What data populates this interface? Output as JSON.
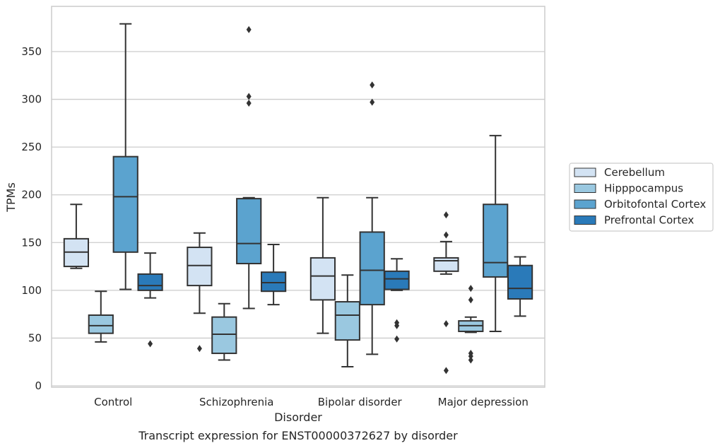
{
  "caption": "Transcript expression for ENST00000372627 by disorder",
  "chart_data": {
    "type": "box",
    "xlabel": "Disorder",
    "ylabel": "TPMs",
    "ylim": [
      0,
      395
    ],
    "yticks": [
      0,
      50,
      100,
      150,
      200,
      250,
      300,
      350
    ],
    "categories": [
      "Control",
      "Schizophrenia",
      "Bipolar disorder",
      "Major depression"
    ],
    "grid": "horizontal",
    "legend_position": "right",
    "series": [
      {
        "name": "Cerebellum",
        "color": "#d3e3f3",
        "boxes": [
          {
            "whisker_low": 123,
            "q1": 125,
            "median": 140,
            "q3": 154,
            "whisker_high": 190,
            "outliers": []
          },
          {
            "whisker_low": 76,
            "q1": 105,
            "median": 126,
            "q3": 145,
            "whisker_high": 160,
            "outliers": [
              39
            ]
          },
          {
            "whisker_low": 55,
            "q1": 90,
            "median": 115,
            "q3": 134,
            "whisker_high": 197,
            "outliers": []
          },
          {
            "whisker_low": 117,
            "q1": 120,
            "median": 131,
            "q3": 134,
            "whisker_high": 151,
            "outliers": [
              179,
              158,
              65,
              16
            ]
          }
        ]
      },
      {
        "name": "Hipppocampus",
        "color": "#9ac8e0",
        "boxes": [
          {
            "whisker_low": 46,
            "q1": 55,
            "median": 63,
            "q3": 74,
            "whisker_high": 99,
            "outliers": []
          },
          {
            "whisker_low": 27,
            "q1": 34,
            "median": 54,
            "q3": 72,
            "whisker_high": 86,
            "outliers": []
          },
          {
            "whisker_low": 20,
            "q1": 48,
            "median": 74,
            "q3": 88,
            "whisker_high": 116,
            "outliers": []
          },
          {
            "whisker_low": 56,
            "q1": 57,
            "median": 63,
            "q3": 68,
            "whisker_high": 72,
            "outliers": [
              102,
              90,
              34,
              31,
              27
            ]
          }
        ]
      },
      {
        "name": "Orbitofontal Cortex",
        "color": "#5ba3cf",
        "boxes": [
          {
            "whisker_low": 101,
            "q1": 140,
            "median": 198,
            "q3": 240,
            "whisker_high": 379,
            "outliers": []
          },
          {
            "whisker_low": 81,
            "q1": 128,
            "median": 149,
            "q3": 196,
            "whisker_high": 197,
            "outliers": [
              373,
              303,
              296
            ]
          },
          {
            "whisker_low": 33,
            "q1": 85,
            "median": 121,
            "q3": 161,
            "whisker_high": 197,
            "outliers": [
              315,
              297
            ]
          },
          {
            "whisker_low": 57,
            "q1": 114,
            "median": 129,
            "q3": 190,
            "whisker_high": 262,
            "outliers": []
          }
        ]
      },
      {
        "name": "Prefrontal Cortex",
        "color": "#2a7ab9",
        "boxes": [
          {
            "whisker_low": 92,
            "q1": 100,
            "median": 105,
            "q3": 117,
            "whisker_high": 139,
            "outliers": [
              44
            ]
          },
          {
            "whisker_low": 85,
            "q1": 99,
            "median": 108,
            "q3": 119,
            "whisker_high": 148,
            "outliers": []
          },
          {
            "whisker_low": 100,
            "q1": 101,
            "median": 112,
            "q3": 120,
            "whisker_high": 133,
            "outliers": [
              66,
              63,
              49
            ]
          },
          {
            "whisker_low": 73,
            "q1": 91,
            "median": 102,
            "q3": 126,
            "whisker_high": 135,
            "outliers": []
          }
        ]
      }
    ]
  }
}
